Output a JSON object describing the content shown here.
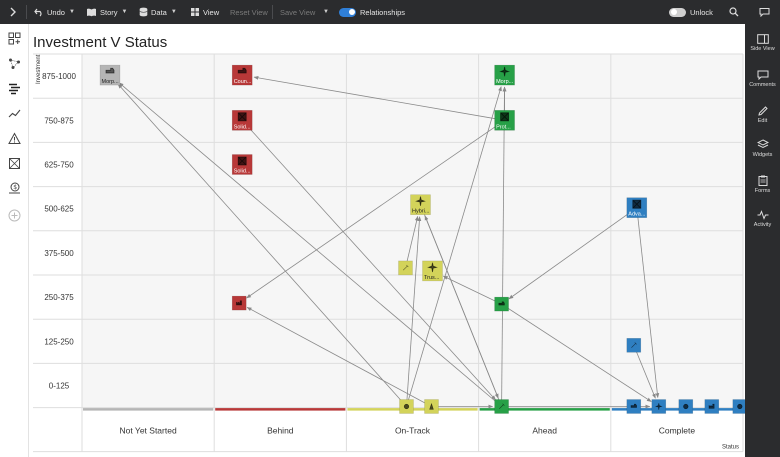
{
  "toolbar": {
    "undo": "Undo",
    "story": "Story",
    "data": "Data",
    "view": "View",
    "reset_view": "Reset View",
    "save_view": "Save View",
    "relationships": "Relationships",
    "relationships_on": true,
    "unlock": "Unlock",
    "unlock_on": false
  },
  "right_rail": {
    "side_view": "Side View",
    "comments": "Comments",
    "edit": "Edit",
    "widgets": "Widgets",
    "forms": "Forms",
    "activity": "Activity"
  },
  "left_rail_icons": [
    "add-widget-icon",
    "relationship-graph-icon",
    "list-view-icon",
    "trend-icon",
    "warning-icon",
    "box-icon",
    "money-icon",
    "add-circle-icon"
  ],
  "colors": {
    "not_yet_started": "#b5b5b5",
    "behind": "#b83838",
    "on_track": "#d3d35a",
    "ahead": "#27a047",
    "complete": "#2f7fc1",
    "accent": "#2f7fd8"
  },
  "chart_data": {
    "type": "scatter",
    "title": "Investment V Status",
    "xlabel": "Status",
    "ylabel": "Investment",
    "categories": [
      "Not Yet Started",
      "Behind",
      "On-Track",
      "Ahead",
      "Complete"
    ],
    "y_bands": [
      "875-1000",
      "750-875",
      "625-750",
      "500-625",
      "375-500",
      "250-375",
      "125-250",
      "0-125"
    ],
    "items": [
      {
        "id": "n1",
        "status": "Not Yet Started",
        "band": "875-1000",
        "label": "Morp...",
        "icon": "truck"
      },
      {
        "id": "b1",
        "status": "Behind",
        "band": "875-1000",
        "label": "Coun...",
        "icon": "truck"
      },
      {
        "id": "b2",
        "status": "Behind",
        "band": "750-875",
        "label": "Solid...",
        "icon": "boxes"
      },
      {
        "id": "b3",
        "status": "Behind",
        "band": "625-750",
        "label": "Solid...",
        "icon": "boxes"
      },
      {
        "id": "b4",
        "status": "Behind",
        "band": "250-375",
        "label": "",
        "icon": "factory"
      },
      {
        "id": "o1",
        "status": "On-Track",
        "band": "500-625",
        "label": "Hybri...",
        "icon": "plane"
      },
      {
        "id": "o2",
        "status": "On-Track",
        "band": "375-500",
        "label": "",
        "icon": "tools"
      },
      {
        "id": "o3",
        "status": "On-Track",
        "band": "375-500",
        "label": "Trus...",
        "icon": "plane"
      },
      {
        "id": "o4",
        "status": "On-Track",
        "band": "0-125",
        "label": "",
        "icon": "gear"
      },
      {
        "id": "o5",
        "status": "On-Track",
        "band": "0-125",
        "label": "",
        "icon": "tower"
      },
      {
        "id": "a1",
        "status": "Ahead",
        "band": "875-1000",
        "label": "Morp...",
        "icon": "plane"
      },
      {
        "id": "a2",
        "status": "Ahead",
        "band": "750-875",
        "label": "Prot...",
        "icon": "boxes"
      },
      {
        "id": "a3",
        "status": "Ahead",
        "band": "250-375",
        "label": "",
        "icon": "truck"
      },
      {
        "id": "a4",
        "status": "Ahead",
        "band": "0-125",
        "label": "",
        "icon": "tools"
      },
      {
        "id": "c1",
        "status": "Complete",
        "band": "500-625",
        "label": "Adva...",
        "icon": "boxes"
      },
      {
        "id": "c2",
        "status": "Complete",
        "band": "125-250",
        "label": "",
        "icon": "tools"
      },
      {
        "id": "c3",
        "status": "Complete",
        "band": "0-125",
        "label": "",
        "icon": "truck"
      },
      {
        "id": "c4",
        "status": "Complete",
        "band": "0-125",
        "label": "",
        "icon": "plane"
      },
      {
        "id": "c5",
        "status": "Complete",
        "band": "0-125",
        "label": "",
        "icon": "gear"
      },
      {
        "id": "c6",
        "status": "Complete",
        "band": "0-125",
        "label": "",
        "icon": "factory"
      },
      {
        "id": "c7",
        "status": "Complete",
        "band": "0-125",
        "label": "",
        "icon": "gear"
      }
    ],
    "relationships": [
      [
        "a2",
        "b1"
      ],
      [
        "a2",
        "b4"
      ],
      [
        "a2",
        "a1"
      ],
      [
        "o4",
        "a1"
      ],
      [
        "o4",
        "o1"
      ],
      [
        "o5",
        "b4"
      ],
      [
        "o2",
        "o1"
      ],
      [
        "a3",
        "o3"
      ],
      [
        "c1",
        "a3"
      ],
      [
        "c1",
        "c4"
      ],
      [
        "c2",
        "c4"
      ],
      [
        "a4",
        "n1"
      ],
      [
        "a4",
        "o1"
      ],
      [
        "a4",
        "a1"
      ],
      [
        "o4",
        "n1"
      ],
      [
        "b2",
        "a4"
      ],
      [
        "a4",
        "c4"
      ],
      [
        "o5",
        "a4"
      ],
      [
        "a3",
        "c4"
      ],
      [
        "o1",
        "a4"
      ]
    ],
    "grid": true
  }
}
